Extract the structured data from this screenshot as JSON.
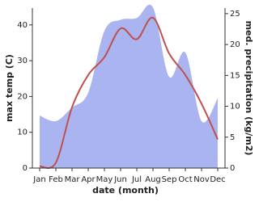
{
  "chart_data": {
    "type": "line-area",
    "x_label": "date (month)",
    "y_label": "max temp (C)",
    "y2_label": "med. precipitation (kg/m2)",
    "categories": [
      "Jan",
      "Feb",
      "Mar",
      "Apr",
      "May",
      "Jun",
      "Jul",
      "Aug",
      "Sep",
      "Oct",
      "Nov",
      "Dec"
    ],
    "series": [
      {
        "name": "precipitation",
        "color": "#aab4f0",
        "axis": "y2",
        "values": [
          8.5,
          7.6,
          9.8,
          12.2,
          22.2,
          24.0,
          24.3,
          26.0,
          14.8,
          18.7,
          7.6,
          11.3
        ]
      },
      {
        "name": "max temp",
        "color": "#c0504d",
        "values": [
          0.5,
          1.5,
          17,
          26,
          31,
          39,
          36,
          42,
          32,
          26,
          18,
          8
        ]
      }
    ],
    "ylim": [
      0,
      44.7
    ],
    "yticks": [
      0,
      10,
      20,
      30,
      40
    ],
    "y2lim": [
      0,
      25.9
    ],
    "y2ticks": [
      0,
      5,
      10,
      15,
      20,
      25
    ]
  }
}
